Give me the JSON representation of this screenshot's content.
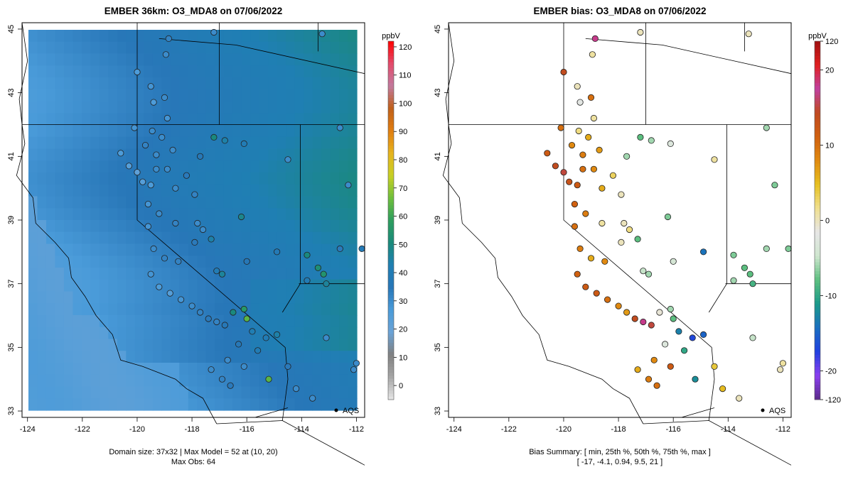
{
  "left": {
    "title": "EMBER 36km: O3_MDA8 on 07/06/2022",
    "caption_line1": "Domain size: 37x32 | Max Model = 52 at (10, 20)",
    "caption_line2": "Max Obs: 64",
    "aqs_label": "AQS",
    "units": "ppbV",
    "colorbar_ticks": [
      0,
      10,
      20,
      30,
      40,
      50,
      60,
      70,
      80,
      90,
      100,
      110,
      120
    ],
    "colorbar_colors": [
      "#e6e6e6",
      "#a6a6a6",
      "#808080",
      "#6ba3d6",
      "#4a9bd9",
      "#2877b8",
      "#1f7fb3",
      "#1a8a7a",
      "#2e9e5e",
      "#6fbf3c",
      "#c8d024",
      "#e6b31e",
      "#e07d10",
      "#c0601a",
      "#c27a9e",
      "#e34a6a",
      "#ff0000"
    ]
  },
  "right": {
    "title": "EMBER bias: O3_MDA8 on 07/06/2022",
    "caption_line1": "Bias Summary: [ min, 25th %, 50th %, 75th %, max ]",
    "caption_line2": "[ -17,   -4.1,   0.94,   9.5,   21 ]",
    "aqs_label": "AQS",
    "units": "ppbV",
    "colorbar_ticks": [
      -20,
      -10,
      0,
      10,
      20,
      120,
      -120
    ],
    "colorbar_colors": [
      "#5b2b8a",
      "#8b3ff0",
      "#2040e0",
      "#1a6fc0",
      "#1a9a8a",
      "#5cbf7f",
      "#cfe6cf",
      "#e6e6e6",
      "#f0e090",
      "#e6c020",
      "#e08a10",
      "#d06010",
      "#c04a20",
      "#c040a0",
      "#e02020",
      "#a01010"
    ]
  },
  "axes": {
    "x_ticks": [
      "-124",
      "-122",
      "-120",
      "-118",
      "-116",
      "-114",
      "-112"
    ],
    "y_ticks": [
      "33",
      "35",
      "37",
      "39",
      "41",
      "43",
      "45"
    ]
  },
  "chart_data": {
    "type": "map",
    "domain": {
      "lon_range": [
        -124.2,
        -111.7
      ],
      "lat_range": [
        32.8,
        45.2
      ]
    },
    "model_max": 52,
    "model_max_cell": [
      10,
      20
    ],
    "obs_max": 64,
    "bias_summary": {
      "min": -17,
      "p25": -4.1,
      "median": 0.94,
      "p75": 9.5,
      "max": 21
    },
    "sites": [
      {
        "lon": -120.0,
        "lat": 43.65,
        "obs": 26,
        "bias": 14
      },
      {
        "lon": -118.85,
        "lat": 44.7,
        "obs": 32,
        "bias": 18
      },
      {
        "lon": -118.95,
        "lat": 44.2,
        "obs": 30,
        "bias": 1
      },
      {
        "lon": -117.2,
        "lat": 44.9,
        "obs": 30,
        "bias": 0
      },
      {
        "lon": -113.25,
        "lat": 44.85,
        "obs": 30,
        "bias": 0
      },
      {
        "lon": -119.0,
        "lat": 42.85,
        "obs": 30,
        "bias": 10
      },
      {
        "lon": -119.5,
        "lat": 43.2,
        "obs": 28,
        "bias": 0
      },
      {
        "lon": -119.4,
        "lat": 42.7,
        "obs": 26,
        "bias": -2
      },
      {
        "lon": -118.9,
        "lat": 42.2,
        "obs": 28,
        "bias": 1
      },
      {
        "lon": -119.45,
        "lat": 41.8,
        "obs": 30,
        "bias": 2
      },
      {
        "lon": -119.1,
        "lat": 41.6,
        "obs": 30,
        "bias": 6
      },
      {
        "lon": -120.6,
        "lat": 41.1,
        "obs": 26,
        "bias": 12
      },
      {
        "lon": -120.1,
        "lat": 41.9,
        "obs": 28,
        "bias": 10
      },
      {
        "lon": -119.7,
        "lat": 41.35,
        "obs": 32,
        "bias": 8
      },
      {
        "lon": -119.3,
        "lat": 41.05,
        "obs": 30,
        "bias": 9
      },
      {
        "lon": -118.7,
        "lat": 41.2,
        "obs": 30,
        "bias": 7
      },
      {
        "lon": -117.7,
        "lat": 41.0,
        "obs": 36,
        "bias": -6
      },
      {
        "lon": -117.2,
        "lat": 41.6,
        "obs": 50,
        "bias": -8
      },
      {
        "lon": -116.8,
        "lat": 41.5,
        "obs": 44,
        "bias": -6
      },
      {
        "lon": -116.1,
        "lat": 41.4,
        "obs": 40,
        "bias": -3
      },
      {
        "lon": -120.3,
        "lat": 40.7,
        "obs": 24,
        "bias": 14
      },
      {
        "lon": -120.0,
        "lat": 40.5,
        "obs": 22,
        "bias": 15
      },
      {
        "lon": -119.8,
        "lat": 40.2,
        "obs": 24,
        "bias": 13
      },
      {
        "lon": -119.5,
        "lat": 40.1,
        "obs": 26,
        "bias": 12
      },
      {
        "lon": -119.3,
        "lat": 40.6,
        "obs": 30,
        "bias": 10
      },
      {
        "lon": -118.9,
        "lat": 40.6,
        "obs": 30,
        "bias": 8
      },
      {
        "lon": -118.6,
        "lat": 40.0,
        "obs": 30,
        "bias": 6
      },
      {
        "lon": -118.2,
        "lat": 40.4,
        "obs": 34,
        "bias": 3
      },
      {
        "lon": -117.9,
        "lat": 39.8,
        "obs": 32,
        "bias": 0
      },
      {
        "lon": -119.6,
        "lat": 39.5,
        "obs": 28,
        "bias": 11
      },
      {
        "lon": -119.2,
        "lat": 39.2,
        "obs": 30,
        "bias": 9
      },
      {
        "lon": -118.6,
        "lat": 38.9,
        "obs": 32,
        "bias": 1
      },
      {
        "lon": -117.8,
        "lat": 38.9,
        "obs": 30,
        "bias": 0
      },
      {
        "lon": -117.6,
        "lat": 38.7,
        "obs": 30,
        "bias": 2
      },
      {
        "lon": -117.3,
        "lat": 38.4,
        "obs": 44,
        "bias": -8
      },
      {
        "lon": -116.2,
        "lat": 39.1,
        "obs": 48,
        "bias": -7
      },
      {
        "lon": -119.6,
        "lat": 38.8,
        "obs": 28,
        "bias": 10
      },
      {
        "lon": -119.4,
        "lat": 38.1,
        "obs": 30,
        "bias": 9
      },
      {
        "lon": -119.0,
        "lat": 37.8,
        "obs": 32,
        "bias": 6
      },
      {
        "lon": -118.5,
        "lat": 37.7,
        "obs": 32,
        "bias": 8
      },
      {
        "lon": -117.9,
        "lat": 38.3,
        "obs": 34,
        "bias": 0
      },
      {
        "lon": -117.1,
        "lat": 37.4,
        "obs": 40,
        "bias": -5
      },
      {
        "lon": -116.9,
        "lat": 37.3,
        "obs": 46,
        "bias": -6
      },
      {
        "lon": -116.0,
        "lat": 37.7,
        "obs": 36,
        "bias": -4
      },
      {
        "lon": -114.9,
        "lat": 38.0,
        "obs": 38,
        "bias": -14
      },
      {
        "lon": -113.8,
        "lat": 37.9,
        "obs": 50,
        "bias": -7
      },
      {
        "lon": -113.4,
        "lat": 37.5,
        "obs": 52,
        "bias": -8
      },
      {
        "lon": -113.2,
        "lat": 37.3,
        "obs": 54,
        "bias": -8
      },
      {
        "lon": -113.1,
        "lat": 37.0,
        "obs": 46,
        "bias": -9
      },
      {
        "lon": -113.8,
        "lat": 37.1,
        "obs": 40,
        "bias": -6
      },
      {
        "lon": -119.5,
        "lat": 37.3,
        "obs": 28,
        "bias": 11
      },
      {
        "lon": -119.2,
        "lat": 36.9,
        "obs": 26,
        "bias": 12
      },
      {
        "lon": -118.8,
        "lat": 36.7,
        "obs": 24,
        "bias": 12
      },
      {
        "lon": -118.4,
        "lat": 36.5,
        "obs": 28,
        "bias": 10
      },
      {
        "lon": -118.0,
        "lat": 36.3,
        "obs": 30,
        "bias": 8
      },
      {
        "lon": -117.7,
        "lat": 36.1,
        "obs": 32,
        "bias": 7
      },
      {
        "lon": -117.4,
        "lat": 35.9,
        "obs": 34,
        "bias": 14
      },
      {
        "lon": -117.1,
        "lat": 35.8,
        "obs": 32,
        "bias": 18
      },
      {
        "lon": -116.8,
        "lat": 35.7,
        "obs": 36,
        "bias": 15
      },
      {
        "lon": -116.5,
        "lat": 36.1,
        "obs": 50,
        "bias": -1
      },
      {
        "lon": -116.1,
        "lat": 36.2,
        "obs": 56,
        "bias": -6
      },
      {
        "lon": -116.0,
        "lat": 35.9,
        "obs": 64,
        "bias": -8
      },
      {
        "lon": -115.8,
        "lat": 35.5,
        "obs": 42,
        "bias": -13
      },
      {
        "lon": -115.3,
        "lat": 35.3,
        "obs": 40,
        "bias": -17
      },
      {
        "lon": -114.9,
        "lat": 35.4,
        "obs": 44,
        "bias": -15
      },
      {
        "lon": -116.3,
        "lat": 35.1,
        "obs": 36,
        "bias": -3
      },
      {
        "lon": -114.5,
        "lat": 34.4,
        "obs": 34,
        "bias": 4
      },
      {
        "lon": -115.6,
        "lat": 34.9,
        "obs": 40,
        "bias": -10
      },
      {
        "lon": -116.7,
        "lat": 34.6,
        "obs": 30,
        "bias": 8
      },
      {
        "lon": -116.1,
        "lat": 34.4,
        "obs": 30,
        "bias": 12
      },
      {
        "lon": -117.3,
        "lat": 34.3,
        "obs": 30,
        "bias": 6
      },
      {
        "lon": -116.9,
        "lat": 34.0,
        "obs": 32,
        "bias": 9
      },
      {
        "lon": -116.6,
        "lat": 33.8,
        "obs": 34,
        "bias": 10
      },
      {
        "lon": -115.2,
        "lat": 34.0,
        "obs": 64,
        "bias": -12
      },
      {
        "lon": -114.2,
        "lat": 33.7,
        "obs": 30,
        "bias": 5
      },
      {
        "lon": -113.6,
        "lat": 33.4,
        "obs": 30,
        "bias": 0
      },
      {
        "lon": -113.1,
        "lat": 35.3,
        "obs": 30,
        "bias": -5
      },
      {
        "lon": -112.1,
        "lat": 34.3,
        "obs": 30,
        "bias": 0
      },
      {
        "lon": -112.0,
        "lat": 34.5,
        "obs": 30,
        "bias": 1
      },
      {
        "lon": -112.6,
        "lat": 38.1,
        "obs": 34,
        "bias": -6
      },
      {
        "lon": -111.8,
        "lat": 38.1,
        "obs": 38,
        "bias": -7
      },
      {
        "lon": -112.6,
        "lat": 41.9,
        "obs": 30,
        "bias": -6
      },
      {
        "lon": -112.3,
        "lat": 40.1,
        "obs": 30,
        "bias": -7
      },
      {
        "lon": -114.5,
        "lat": 40.9,
        "obs": 30,
        "bias": 1
      }
    ]
  }
}
